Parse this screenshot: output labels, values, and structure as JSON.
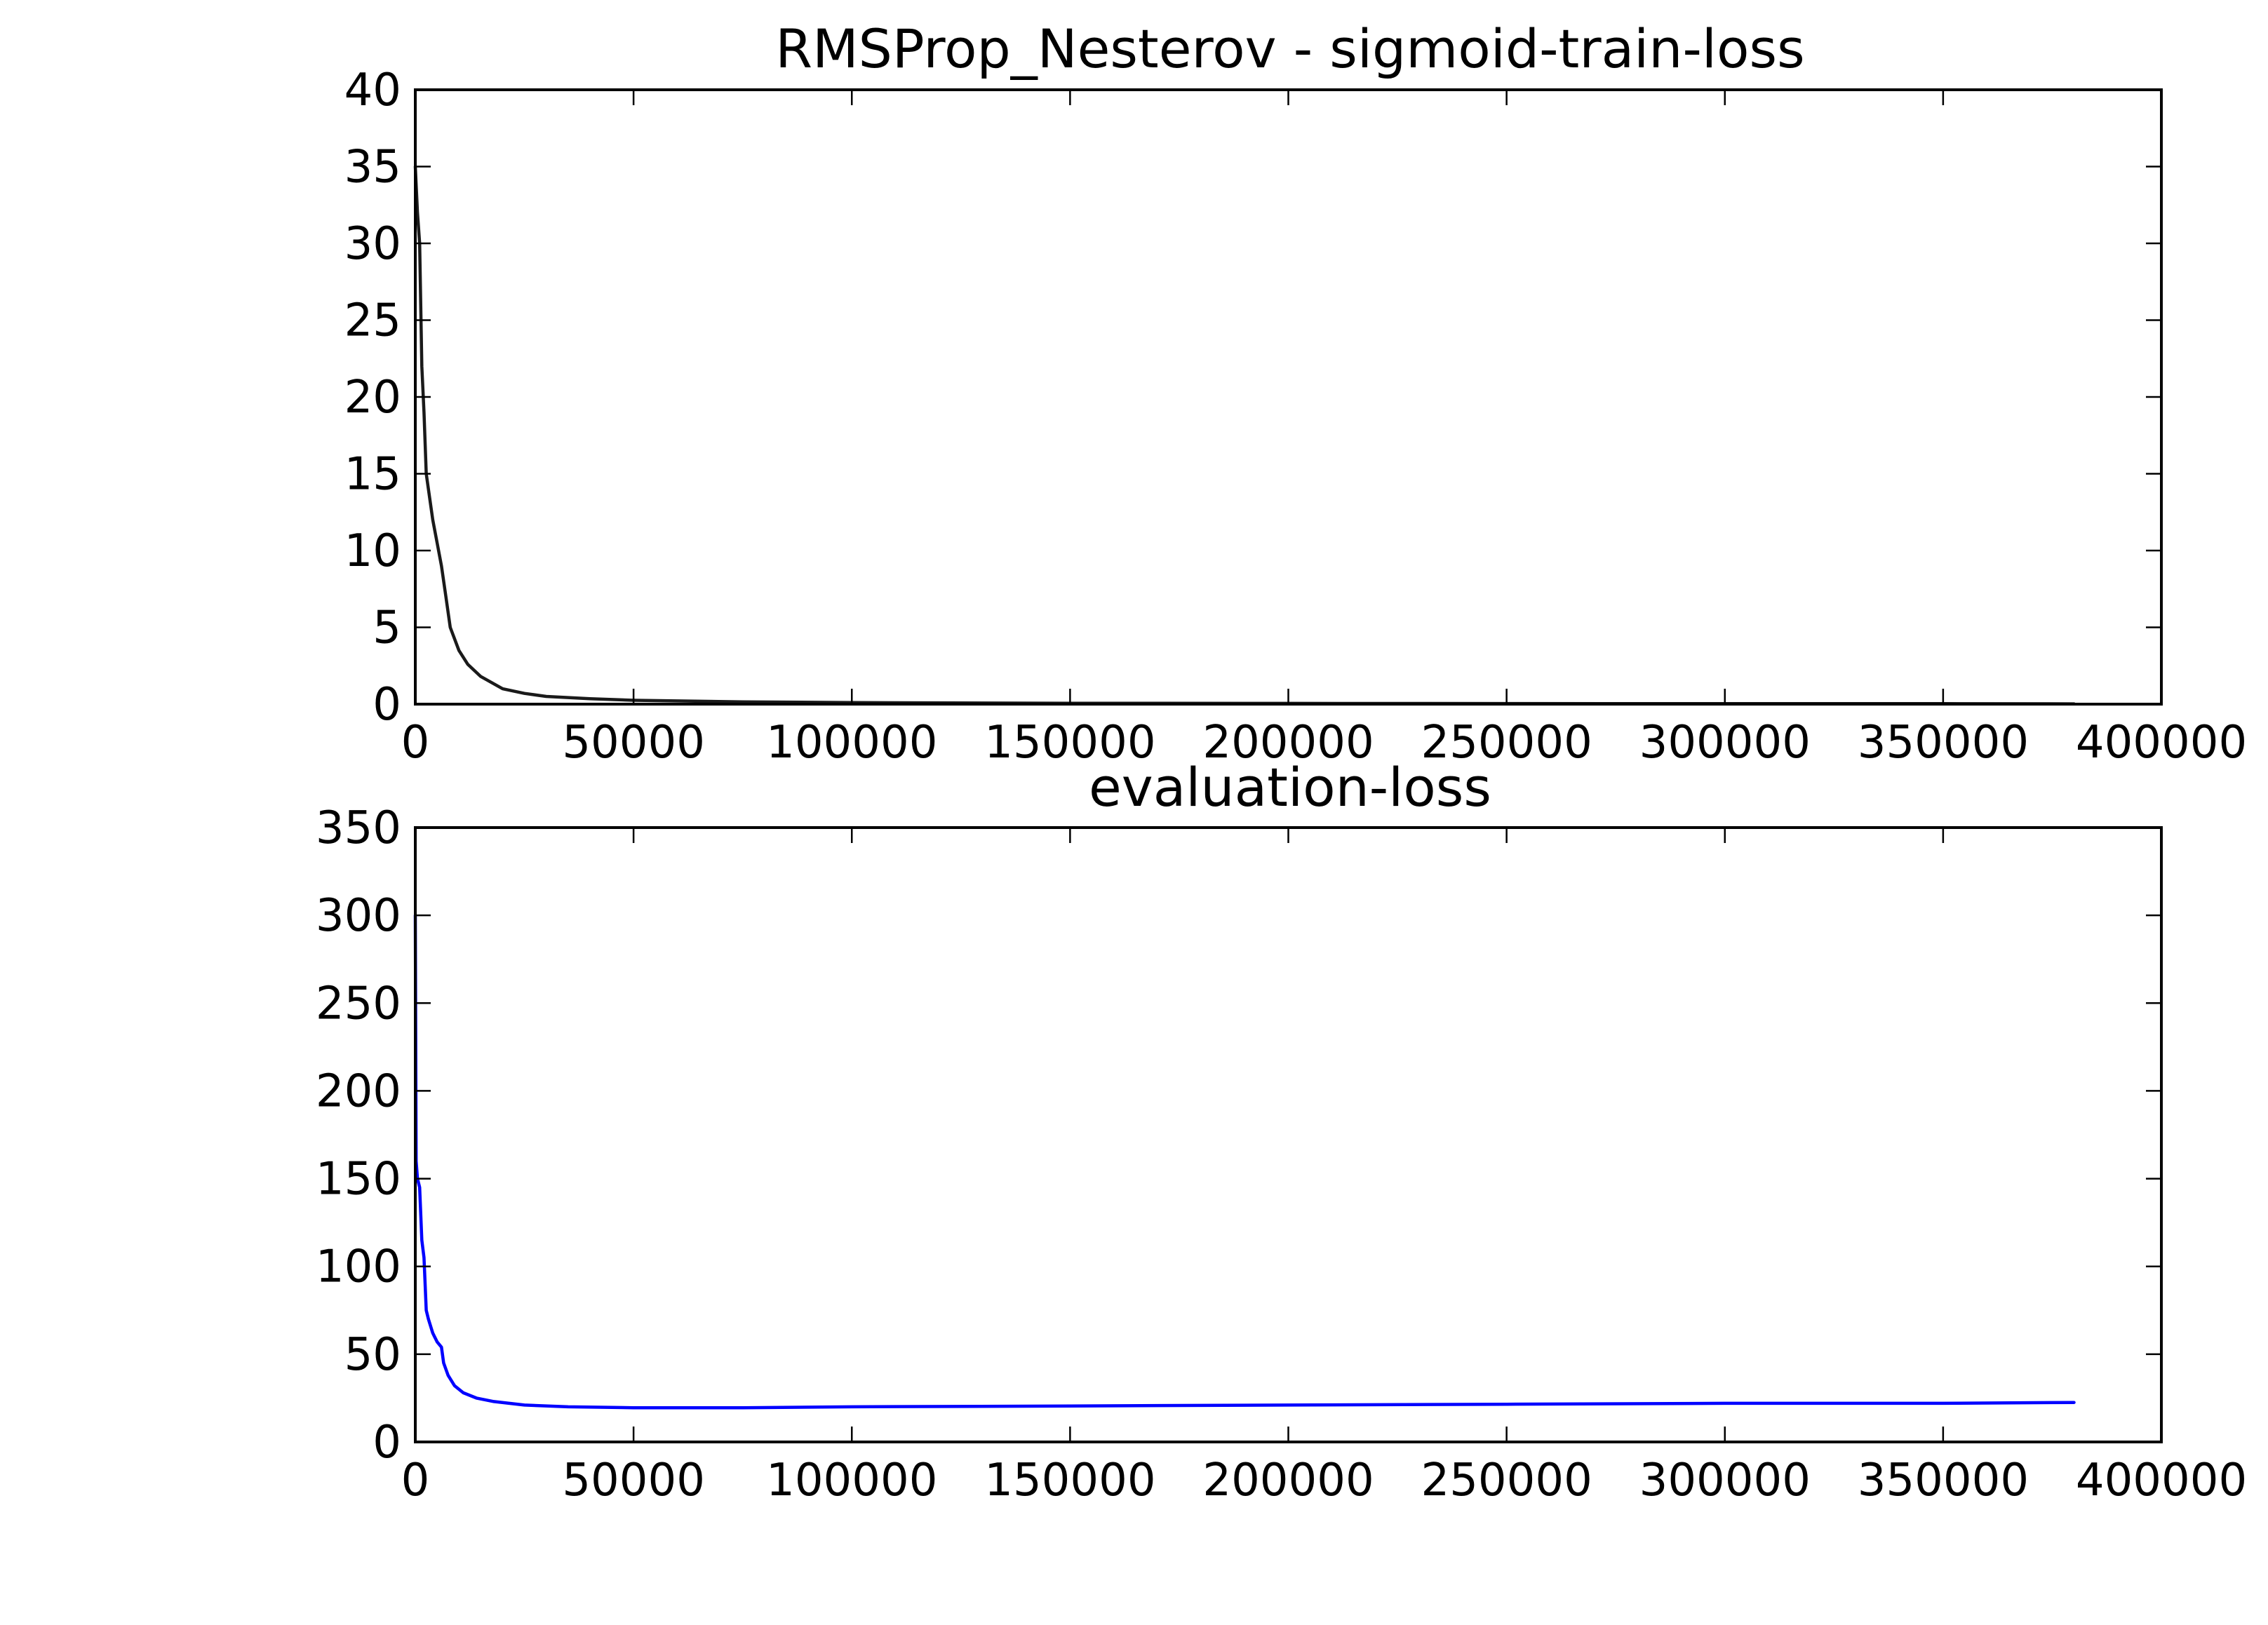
{
  "chart_data": [
    {
      "type": "line",
      "title": "RMSProp_Nesterov - sigmoid-train-loss",
      "xlabel": "",
      "ylabel": "",
      "xlim": [
        0,
        400000
      ],
      "ylim": [
        0,
        40
      ],
      "xticks": [
        0,
        50000,
        100000,
        150000,
        200000,
        250000,
        300000,
        350000,
        400000
      ],
      "xtick_labels": [
        "0",
        "50000",
        "100000",
        "150000",
        "200000",
        "250000",
        "300000",
        "350000",
        "400000"
      ],
      "yticks": [
        0,
        5,
        10,
        15,
        20,
        25,
        30,
        35,
        40
      ],
      "ytick_labels": [
        "0",
        "5",
        "10",
        "15",
        "20",
        "25",
        "30",
        "35",
        "40"
      ],
      "grid": false,
      "series": [
        {
          "color": "#1a1a1a",
          "x": [
            0,
            500,
            1000,
            1500,
            2000,
            2500,
            3000,
            4000,
            5000,
            6000,
            7000,
            8000,
            10000,
            12000,
            15000,
            20000,
            25000,
            30000,
            40000,
            50000,
            75000,
            100000,
            150000,
            200000,
            250000,
            300000,
            350000,
            380000
          ],
          "y": [
            35,
            32,
            30,
            22,
            19,
            15,
            14,
            12,
            10.5,
            9,
            7,
            5,
            3.5,
            2.6,
            1.8,
            1.0,
            0.7,
            0.5,
            0.35,
            0.25,
            0.15,
            0.1,
            0.06,
            0.05,
            0.04,
            0.03,
            0.03,
            0.02
          ]
        }
      ]
    },
    {
      "type": "line",
      "title": "evaluation-loss",
      "xlabel": "",
      "ylabel": "",
      "xlim": [
        0,
        400000
      ],
      "ylim": [
        0,
        350
      ],
      "xticks": [
        0,
        50000,
        100000,
        150000,
        200000,
        250000,
        300000,
        350000,
        400000
      ],
      "xtick_labels": [
        "0",
        "50000",
        "100000",
        "150000",
        "200000",
        "250000",
        "300000",
        "350000",
        "400000"
      ],
      "yticks": [
        0,
        50,
        100,
        150,
        200,
        250,
        300,
        350
      ],
      "ytick_labels": [
        "0",
        "50",
        "100",
        "150",
        "200",
        "250",
        "300",
        "350"
      ],
      "grid": false,
      "series": [
        {
          "color": "#0000ff",
          "x": [
            0,
            200,
            500,
            1000,
            1500,
            2000,
            2500,
            3000,
            4000,
            5000,
            6000,
            6500,
            7500,
            9000,
            11000,
            14000,
            18000,
            25000,
            35000,
            50000,
            75000,
            100000,
            150000,
            200000,
            250000,
            300000,
            350000,
            380000
          ],
          "y": [
            300,
            160,
            150,
            145,
            115,
            105,
            75,
            70,
            62,
            57,
            54,
            45,
            38,
            32,
            28,
            25,
            23,
            21,
            20,
            19.5,
            19.5,
            20,
            20.5,
            21,
            21.5,
            22,
            22,
            22.5
          ]
        }
      ]
    }
  ]
}
